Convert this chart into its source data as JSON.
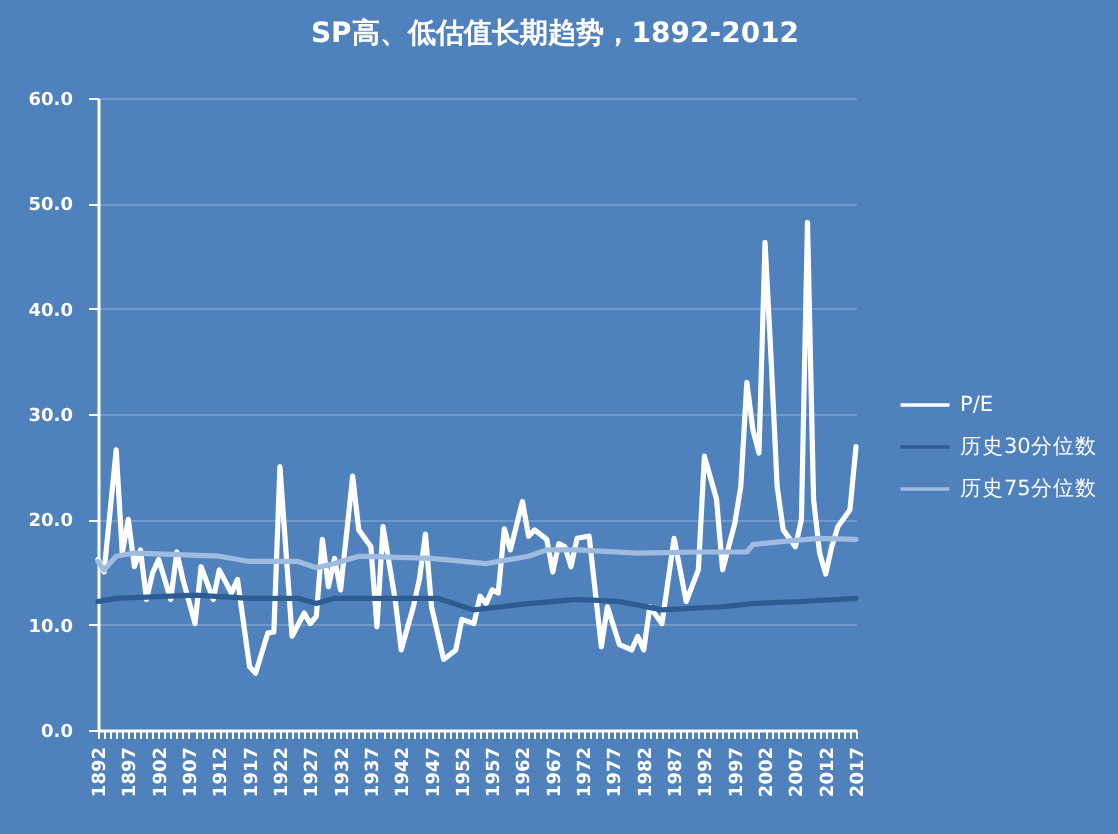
{
  "chart_data": {
    "type": "line",
    "title": "SP高、低估值长期趋势，1892-2012",
    "xlim": [
      1892,
      2017
    ],
    "xticks": [
      1892,
      {
        "value": 1893,
        "label": null
      },
      {
        "value": 1894,
        "label": null
      },
      {
        "value": 1895,
        "label": null
      },
      {
        "value": 1896,
        "label": null
      },
      1897,
      {
        "value": 1898,
        "label": null
      },
      {
        "value": 1899,
        "label": null
      },
      {
        "value": 1900,
        "label": null
      },
      {
        "value": 1901,
        "label": null
      },
      1902,
      {
        "value": 1903,
        "label": null
      },
      {
        "value": 1904,
        "label": null
      },
      {
        "value": 1905,
        "label": null
      },
      {
        "value": 1906,
        "label": null
      },
      1907,
      {
        "value": 1908,
        "label": null
      },
      {
        "value": 1909,
        "label": null
      },
      {
        "value": 1910,
        "label": null
      },
      {
        "value": 1911,
        "label": null
      },
      1912,
      {
        "value": 1913,
        "label": null
      },
      {
        "value": 1914,
        "label": null
      },
      {
        "value": 1915,
        "label": null
      },
      {
        "value": 1916,
        "label": null
      },
      1917,
      {
        "value": 1918,
        "label": null
      },
      {
        "value": 1919,
        "label": null
      },
      {
        "value": 1920,
        "label": null
      },
      {
        "value": 1921,
        "label": null
      },
      1922,
      {
        "value": 1923,
        "label": null
      },
      {
        "value": 1924,
        "label": null
      },
      {
        "value": 1925,
        "label": null
      },
      {
        "value": 1926,
        "label": null
      },
      1927,
      {
        "value": 1928,
        "label": null
      },
      {
        "value": 1929,
        "label": null
      },
      {
        "value": 1930,
        "label": null
      },
      {
        "value": 1931,
        "label": null
      },
      1932,
      {
        "value": 1933,
        "label": null
      },
      {
        "value": 1934,
        "label": null
      },
      {
        "value": 1935,
        "label": null
      },
      {
        "value": 1936,
        "label": null
      },
      1937,
      {
        "value": 1938,
        "label": null
      },
      {
        "value": 1939,
        "label": null
      },
      {
        "value": 1940,
        "label": null
      },
      {
        "value": 1941,
        "label": null
      },
      1942,
      {
        "value": 1943,
        "label": null
      },
      {
        "value": 1944,
        "label": null
      },
      {
        "value": 1945,
        "label": null
      },
      {
        "value": 1946,
        "label": null
      },
      1947,
      {
        "value": 1948,
        "label": null
      },
      {
        "value": 1949,
        "label": null
      },
      {
        "value": 1950,
        "label": null
      },
      {
        "value": 1951,
        "label": null
      },
      1952,
      {
        "value": 1953,
        "label": null
      },
      {
        "value": 1954,
        "label": null
      },
      {
        "value": 1955,
        "label": null
      },
      {
        "value": 1956,
        "label": null
      },
      1957,
      {
        "value": 1958,
        "label": null
      },
      {
        "value": 1959,
        "label": null
      },
      {
        "value": 1960,
        "label": null
      },
      {
        "value": 1961,
        "label": null
      },
      1962,
      {
        "value": 1963,
        "label": null
      },
      {
        "value": 1964,
        "label": null
      },
      {
        "value": 1965,
        "label": null
      },
      {
        "value": 1966,
        "label": null
      },
      1967,
      {
        "value": 1968,
        "label": null
      },
      {
        "value": 1969,
        "label": null
      },
      {
        "value": 1970,
        "label": null
      },
      {
        "value": 1971,
        "label": null
      },
      1972,
      {
        "value": 1973,
        "label": null
      },
      {
        "value": 1974,
        "label": null
      },
      {
        "value": 1975,
        "label": null
      },
      {
        "value": 1976,
        "label": null
      },
      1977,
      {
        "value": 1978,
        "label": null
      },
      {
        "value": 1979,
        "label": null
      },
      {
        "value": 1980,
        "label": null
      },
      {
        "value": 1981,
        "label": null
      },
      1982,
      {
        "value": 1983,
        "label": null
      },
      {
        "value": 1984,
        "label": null
      },
      {
        "value": 1985,
        "label": null
      },
      {
        "value": 1986,
        "label": null
      },
      1987,
      {
        "value": 1988,
        "label": null
      },
      {
        "value": 1989,
        "label": null
      },
      {
        "value": 1990,
        "label": null
      },
      {
        "value": 1991,
        "label": null
      },
      1992,
      {
        "value": 1993,
        "label": null
      },
      {
        "value": 1994,
        "label": null
      },
      {
        "value": 1995,
        "label": null
      },
      {
        "value": 1996,
        "label": null
      },
      1997,
      {
        "value": 1998,
        "label": null
      },
      {
        "value": 1999,
        "label": null
      },
      {
        "value": 2000,
        "label": null
      },
      {
        "value": 2001,
        "label": null
      },
      2002,
      {
        "value": 2003,
        "label": null
      },
      {
        "value": 2004,
        "label": null
      },
      {
        "value": 2005,
        "label": null
      },
      {
        "value": 2006,
        "label": null
      },
      2007,
      {
        "value": 2008,
        "label": null
      },
      {
        "value": 2009,
        "label": null
      },
      {
        "value": 2010,
        "label": null
      },
      {
        "value": 2011,
        "label": null
      },
      2012,
      {
        "value": 2013,
        "label": null
      },
      {
        "value": 2014,
        "label": null
      },
      {
        "value": 2015,
        "label": null
      },
      {
        "value": 2016,
        "label": null
      },
      2017
    ],
    "ylim": [
      0,
      60
    ],
    "yticks": [
      {
        "value": 0,
        "label": "0.0"
      },
      {
        "value": 10,
        "label": "10.0"
      },
      {
        "value": 20,
        "label": "20.0"
      },
      {
        "value": 30,
        "label": "30.0"
      },
      {
        "value": 40,
        "label": "40.0"
      },
      {
        "value": 50,
        "label": "50.0"
      },
      {
        "value": 60,
        "label": "60.0"
      }
    ],
    "grid": "y",
    "legend": "right",
    "series": [
      {
        "name": "P/E",
        "color": "#ffffff",
        "x": [
          1892,
          1893,
          1895,
          1896,
          1897,
          1898,
          1899,
          1900,
          1901,
          1902,
          1904,
          1905,
          1906,
          1908,
          1909,
          1911,
          1912,
          1914,
          1915,
          1917,
          1918,
          1920,
          1921,
          1922,
          1924,
          1926,
          1927,
          1928,
          1929,
          1930,
          1931,
          1932,
          1934,
          1935,
          1937,
          1938,
          1939,
          1941,
          1942,
          1944,
          1945,
          1946,
          1947,
          1949,
          1951,
          1952,
          1954,
          1955,
          1956,
          1957,
          1958,
          1959,
          1960,
          1962,
          1963,
          1964,
          1966,
          1967,
          1968,
          1969,
          1970,
          1971,
          1973,
          1975,
          1976,
          1978,
          1980,
          1981,
          1982,
          1983,
          1985,
          1987,
          1989,
          1991,
          1992,
          1994,
          1995,
          1997,
          1998,
          1999,
          2000,
          2001,
          2002,
          2003,
          2004,
          2005,
          2007,
          2008,
          2009,
          2010,
          2011,
          2012,
          2013,
          2014,
          2016,
          2017
        ],
        "values": [
          16.2,
          15.0,
          26.6,
          16.8,
          20.0,
          15.5,
          17.1,
          12.4,
          14.9,
          16.2,
          12.4,
          16.9,
          14.3,
          10.1,
          15.5,
          12.4,
          15.2,
          13.0,
          14.3,
          6.0,
          5.4,
          9.2,
          9.3,
          25.0,
          8.9,
          11.1,
          10.1,
          10.8,
          18.1,
          13.6,
          16.3,
          13.3,
          24.1,
          19.0,
          17.4,
          9.8,
          19.3,
          12.4,
          7.6,
          11.7,
          14.3,
          18.6,
          11.7,
          6.7,
          7.6,
          10.5,
          10.1,
          12.7,
          12.0,
          13.3,
          13.0,
          19.1,
          17.1,
          21.7,
          18.4,
          19.0,
          18.1,
          15.0,
          17.7,
          17.4,
          15.5,
          18.2,
          18.4,
          7.9,
          11.7,
          8.1,
          7.6,
          8.9,
          7.6,
          11.7,
          10.1,
          18.2,
          12.2,
          15.2,
          26.0,
          21.9,
          15.2,
          19.6,
          23.1,
          33.0,
          28.5,
          26.3,
          46.3,
          35.2,
          23.1,
          19.0,
          17.4,
          20.0,
          48.2,
          21.9,
          16.8,
          14.8,
          17.4,
          19.3,
          20.9,
          26.9
        ]
      },
      {
        "name": "历史30分位数",
        "color": "#2e5b90",
        "x": [
          1892,
          1895,
          1908,
          1917,
          1925,
          1928,
          1931,
          1948,
          1954,
          1963,
          1971,
          1978,
          1985,
          1995,
          2000,
          2008,
          2017
        ],
        "values": [
          12.2,
          12.5,
          12.8,
          12.5,
          12.5,
          12.0,
          12.5,
          12.5,
          11.4,
          12.0,
          12.4,
          12.2,
          11.4,
          11.7,
          12.0,
          12.2,
          12.5
        ]
      },
      {
        "name": "历史75分位数",
        "color": "#9fbbe0",
        "x": [
          1892,
          1893,
          1895,
          1898,
          1903,
          1912,
          1917,
          1925,
          1928,
          1931,
          1935,
          1947,
          1956,
          1963,
          1966,
          1971,
          1981,
          1991,
          1999,
          2000,
          2005,
          2011,
          2017
        ],
        "values": [
          16.0,
          15.2,
          16.5,
          16.8,
          16.7,
          16.5,
          16.0,
          16.0,
          15.4,
          15.8,
          16.5,
          16.3,
          15.8,
          16.5,
          17.1,
          17.1,
          16.8,
          16.9,
          16.9,
          17.6,
          17.9,
          18.2,
          18.1
        ]
      }
    ]
  }
}
